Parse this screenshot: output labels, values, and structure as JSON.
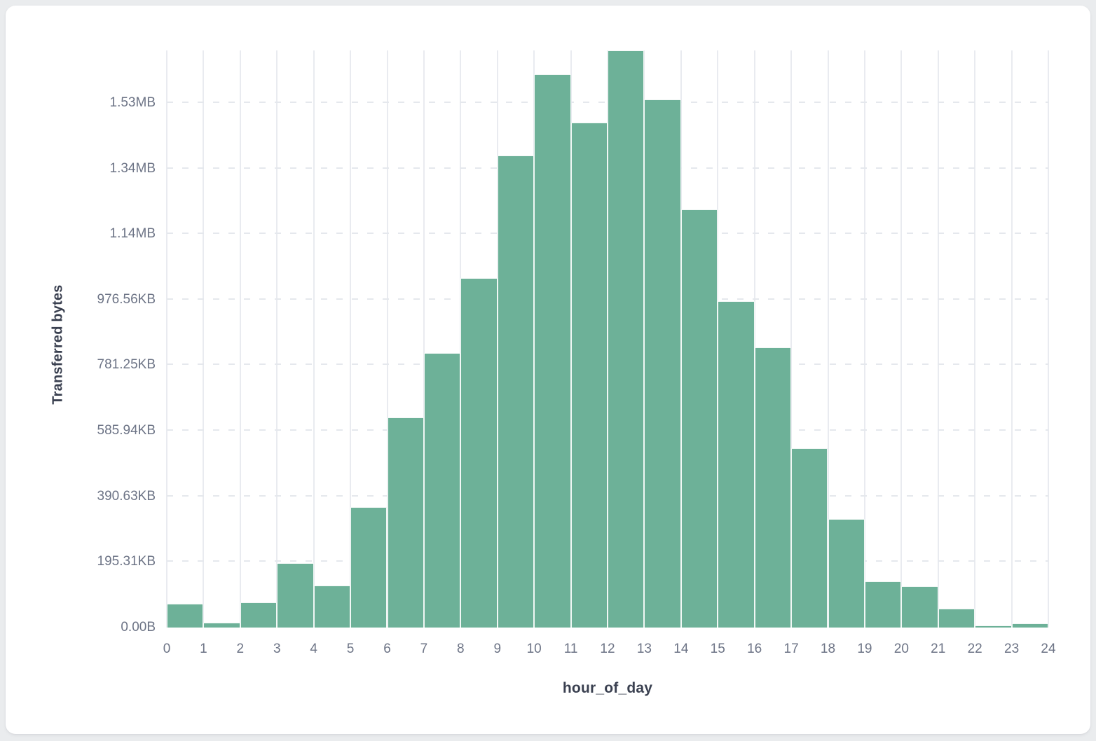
{
  "chart_data": {
    "type": "bar",
    "subtype": "histogram",
    "title": "",
    "xlabel": "hour_of_day",
    "ylabel": "Transferred bytes",
    "categories": [
      0,
      1,
      2,
      3,
      4,
      5,
      6,
      7,
      8,
      9,
      10,
      11,
      12,
      13,
      14,
      15,
      16,
      17,
      18,
      19,
      20,
      21,
      22,
      23
    ],
    "values_kb": [
      71.5,
      14.6,
      75.7,
      192.5,
      125.1,
      358.6,
      625.5,
      817.4,
      1041.1,
      1406.0,
      1647.3,
      1503.4,
      1718.8,
      1572.8,
      1246.3,
      971.7,
      834.1,
      533.8,
      323.8,
      137.6,
      123.7,
      55.7,
      5.6,
      12.5
    ],
    "ylim_kb": [
      0,
      1718.8
    ],
    "grid": "on",
    "legend": "none",
    "bar_color": "#6db198"
  },
  "y_axis": {
    "title": "Transferred bytes",
    "ticks": [
      {
        "label": "0.00B",
        "value_kb": 0
      },
      {
        "label": "195.31KB",
        "value_kb": 195.3125
      },
      {
        "label": "390.63KB",
        "value_kb": 390.625
      },
      {
        "label": "585.94KB",
        "value_kb": 585.9375
      },
      {
        "label": "781.25KB",
        "value_kb": 781.25
      },
      {
        "label": "976.56KB",
        "value_kb": 976.5625
      },
      {
        "label": "1.14MB",
        "value_kb": 1171.875
      },
      {
        "label": "1.34MB",
        "value_kb": 1367.1875
      },
      {
        "label": "1.53MB",
        "value_kb": 1562.5
      }
    ]
  },
  "x_axis": {
    "title": "hour_of_day",
    "tick_labels": [
      "0",
      "1",
      "2",
      "3",
      "4",
      "5",
      "6",
      "7",
      "8",
      "9",
      "10",
      "11",
      "12",
      "13",
      "14",
      "15",
      "16",
      "17",
      "18",
      "19",
      "20",
      "21",
      "22",
      "23",
      "24"
    ]
  },
  "colors": {
    "bar": "#6db198",
    "vgrid": "#e9ebf0",
    "hgrid": "#e5e8ed",
    "tick_text": "#6d7486",
    "title_text": "#3a4050",
    "card_bg": "#ffffff",
    "page_bg": "#eaecee"
  }
}
